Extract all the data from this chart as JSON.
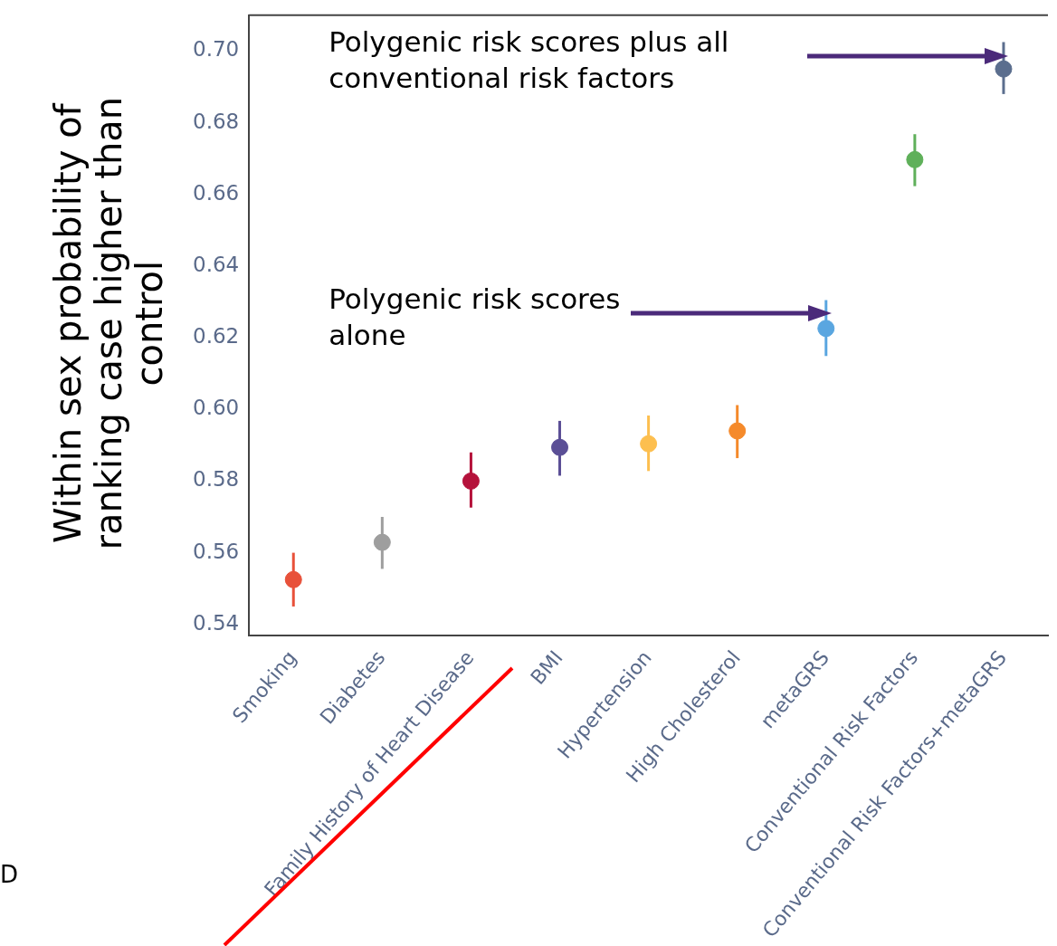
{
  "chart_data": {
    "type": "scatter",
    "ylabel": "Within sex probability of ranking case higher than control",
    "categories": [
      "Smoking",
      "Diabetes",
      "Family History of Heart Disease",
      "BMI",
      "Hypertension",
      "High Cholesterol",
      "metaGRS",
      "Conventional Risk Factors",
      "Conventional Risk Factors+metaGRS"
    ],
    "values": [
      0.5525,
      0.5629,
      0.58,
      0.5894,
      0.5904,
      0.594,
      0.6226,
      0.6697,
      0.695
    ],
    "errors": [
      [
        0.545,
        0.56
      ],
      [
        0.5555,
        0.57
      ],
      [
        0.5726,
        0.588
      ],
      [
        0.5815,
        0.5968
      ],
      [
        0.5828,
        0.5983
      ],
      [
        0.5864,
        0.6012
      ],
      [
        0.6149,
        0.6305
      ],
      [
        0.6623,
        0.6768
      ],
      [
        0.688,
        0.7025
      ]
    ],
    "colors": [
      "#e8513a",
      "#9e9e9e",
      "#b5123b",
      "#5b4f96",
      "#fdbf4f",
      "#f58a2b",
      "#5aa6e0",
      "#5fb05a",
      "#5b6e8e"
    ],
    "ylim": [
      0.537,
      0.71
    ],
    "yticks": [
      0.54,
      0.56,
      0.58,
      {
        "value": 0.6,
        "label": "0.60"
      },
      0.62,
      0.64,
      0.66,
      0.68,
      {
        "value": 0.7,
        "label": "0.70"
      }
    ],
    "grid": false,
    "legend": false,
    "marker": "circle",
    "annotations": [
      "Polygenic risk scores plus all conventional risk factors",
      "Polygenic risk scores alone",
      "D"
    ]
  }
}
